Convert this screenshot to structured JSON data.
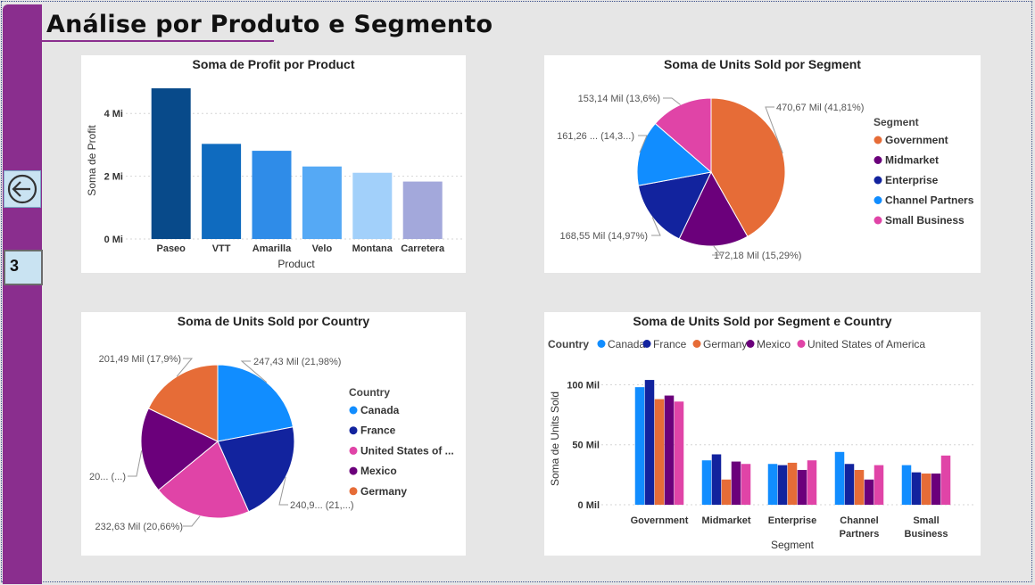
{
  "page": {
    "title": "Análise por Produto e Segmento",
    "page_number": "3",
    "back_button_icon": "arrow-left-circle-icon"
  },
  "colors": {
    "sidebar": "#8a2e8e",
    "Government": "#e66c37",
    "Midmarket": "#6b007b",
    "Enterprise": "#12239e",
    "Channel Partners": "#118dff",
    "Small Business": "#e044a7",
    "Canada": "#118dff",
    "France": "#12239e",
    "Germany": "#e66c37",
    "Mexico": "#6b007b",
    "United States of America": "#e044a7",
    "product_bars": [
      "#084a8a",
      "#0f6bbf",
      "#2f8ce8",
      "#55a9f5",
      "#a2d0fa",
      "#a3a8db"
    ]
  },
  "chart_data": [
    {
      "id": "profit_by_product",
      "type": "bar",
      "title": "Soma de Profit por Product",
      "xlabel": "Product",
      "ylabel": "Soma de Profit",
      "categories": [
        "Paseo",
        "VTT",
        "Amarilla",
        "Velo",
        "Montana",
        "Carretera"
      ],
      "values": [
        4.8,
        3.03,
        2.81,
        2.31,
        2.11,
        1.83
      ],
      "value_unit": "Mi",
      "yticks": [
        "0 Mi",
        "2 Mi",
        "4 Mi"
      ],
      "ytick_values": [
        0,
        2,
        4
      ],
      "ylim": [
        0,
        5
      ],
      "grid": true
    },
    {
      "id": "units_by_segment",
      "type": "pie",
      "title": "Soma de Units Sold por Segment",
      "legend_title": "Segment",
      "legend_position": "right",
      "slices": [
        {
          "name": "Government",
          "value": 470.67,
          "label": "470,67 Mil (41,81%)"
        },
        {
          "name": "Midmarket",
          "value": 172.18,
          "label": "172,18 Mil (15,29%)"
        },
        {
          "name": "Enterprise",
          "value": 168.55,
          "label": "168,55 Mil (14,97%)"
        },
        {
          "name": "Channel Partners",
          "value": 161.26,
          "label": "161,26 ... (14,3...)"
        },
        {
          "name": "Small Business",
          "value": 153.14,
          "label": "153,14 Mil (13,6%)"
        }
      ]
    },
    {
      "id": "units_by_country",
      "type": "pie",
      "title": "Soma de Units Sold por Country",
      "legend_title": "Country",
      "legend_position": "right",
      "legend_items": [
        "Canada",
        "France",
        "United States of ...",
        "Mexico",
        "Germany"
      ],
      "slices": [
        {
          "name": "Canada",
          "value": 247.43,
          "label": "247,43 Mil (21,98%)"
        },
        {
          "name": "France",
          "value": 240.93,
          "label": "240,9... (21,...)"
        },
        {
          "name": "United States of America",
          "value": 232.63,
          "label": "232,63 Mil (20,66%)"
        },
        {
          "name": "Mexico",
          "value": 203.33,
          "label": "20... (...)"
        },
        {
          "name": "Germany",
          "value": 201.49,
          "label": "201,49 Mil (17,9%)"
        }
      ]
    },
    {
      "id": "units_by_segment_country",
      "type": "bar",
      "title": "Soma de Units Sold por Segment e Country",
      "legend_title": "Country",
      "legend_position": "top-left",
      "xlabel": "Segment",
      "ylabel": "Soma de Units Sold",
      "categories": [
        "Government",
        "Midmarket",
        "Enterprise",
        "Channel Partners",
        "Small Business"
      ],
      "category_lines": [
        [
          "Government"
        ],
        [
          "Midmarket"
        ],
        [
          "Enterprise"
        ],
        [
          "Channel",
          "Partners"
        ],
        [
          "Small",
          "Business"
        ]
      ],
      "series": [
        {
          "name": "Canada",
          "values": [
            98,
            37,
            34,
            44,
            33
          ]
        },
        {
          "name": "France",
          "values": [
            104,
            42,
            33,
            34,
            27
          ]
        },
        {
          "name": "Germany",
          "values": [
            88,
            21,
            35,
            29,
            26
          ]
        },
        {
          "name": "Mexico",
          "values": [
            91,
            36,
            29,
            21,
            26
          ]
        },
        {
          "name": "United States of America",
          "values": [
            86,
            34,
            37,
            33,
            41
          ]
        }
      ],
      "yticks": [
        "0 Mil",
        "50 Mil",
        "100 Mil"
      ],
      "ytick_values": [
        0,
        50,
        100
      ],
      "ylim": [
        0,
        110
      ],
      "grid": true
    }
  ]
}
